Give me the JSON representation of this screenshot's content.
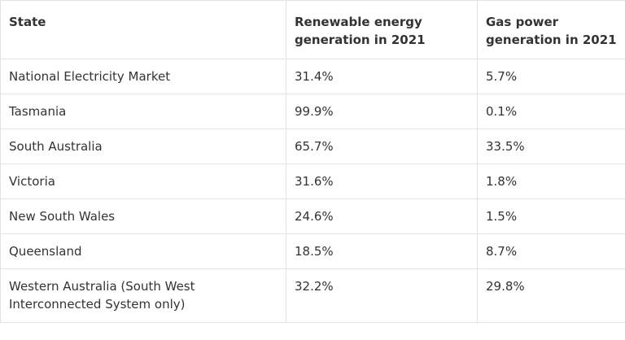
{
  "table": {
    "headers": [
      "State",
      "Renewable energy generation in 2021",
      "Gas power generation in 2021"
    ],
    "rows": [
      [
        "National Electricity Market",
        "31.4%",
        "5.7%"
      ],
      [
        "Tasmania",
        "99.9%",
        "0.1%"
      ],
      [
        "South Australia",
        "65.7%",
        "33.5%"
      ],
      [
        "Victoria",
        "31.6%",
        "1.8%"
      ],
      [
        "New South Wales",
        "24.6%",
        "1.5%"
      ],
      [
        "Queensland",
        "18.5%",
        "8.7%"
      ],
      [
        "Western Australia (South West Interconnected System only)",
        "32.2%",
        "29.8%"
      ]
    ]
  }
}
